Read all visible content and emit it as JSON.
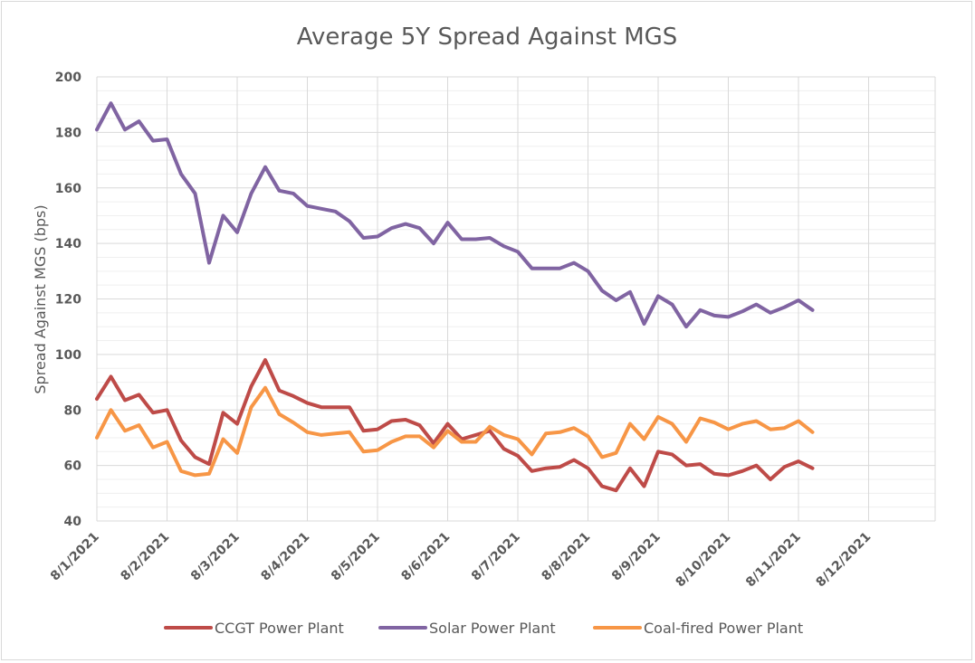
{
  "chart_data": {
    "type": "line",
    "title": "Average 5Y Spread Against MGS",
    "xlabel": "",
    "ylabel": "Spread Against MGS (bps)",
    "ylim": [
      40,
      200
    ],
    "yticks": [
      40,
      60,
      80,
      100,
      120,
      140,
      160,
      180,
      200
    ],
    "grid": true,
    "legend": "bottom",
    "x_tick_labels": [
      "8/1/2021",
      "8/2/2021",
      "8/3/2021",
      "8/4/2021",
      "8/5/2021",
      "8/6/2021",
      "8/7/2021",
      "8/8/2021",
      "8/9/2021",
      "8/10/2021",
      "8/11/2021",
      "8/12/2021"
    ],
    "x_tick_indices": [
      0,
      5,
      10,
      15,
      20,
      25,
      30,
      35,
      40,
      45,
      50,
      55
    ],
    "series": [
      {
        "name": "CCGT Power Plant",
        "color": "#be4b48",
        "values": [
          84,
          92,
          83.5,
          85.5,
          79,
          80,
          69,
          63,
          60.5,
          79,
          75,
          88.5,
          98,
          87,
          85,
          82.5,
          81,
          81,
          81,
          72.5,
          73,
          76,
          76.5,
          74.5,
          68,
          75,
          69.5,
          71,
          72.5,
          66,
          63.5,
          58,
          59,
          59.5,
          62,
          59,
          52.5,
          51,
          59,
          52.5,
          65,
          64,
          60,
          60.5,
          57,
          56.5,
          58,
          60,
          55,
          59.5,
          61.5,
          59
        ]
      },
      {
        "name": "Solar Power Plant",
        "color": "#8064a2",
        "values": [
          181,
          190.5,
          181,
          184,
          177,
          177.5,
          165,
          158,
          133,
          150,
          144,
          158,
          167.5,
          159,
          158,
          153.5,
          152.5,
          151.5,
          148,
          142,
          142.5,
          145.5,
          147,
          145.5,
          140,
          147.5,
          141.5,
          141.5,
          142,
          139,
          137,
          131,
          131,
          131,
          133,
          130,
          123,
          119.5,
          122.5,
          111,
          121,
          118,
          110,
          116,
          114,
          113.5,
          115.5,
          118,
          115,
          117,
          119.5,
          116
        ]
      },
      {
        "name": "Coal-fired Power Plant",
        "color": "#f79646",
        "values": [
          70,
          80,
          72.5,
          74.5,
          66.5,
          68.5,
          58,
          56.5,
          57,
          69.5,
          64.5,
          81,
          88,
          78.5,
          75.5,
          72,
          71,
          71.5,
          72,
          65,
          65.5,
          68.5,
          70.5,
          70.5,
          66.5,
          72.5,
          68.5,
          68.5,
          74,
          71,
          69.5,
          64,
          71.5,
          72,
          73.5,
          70.5,
          63,
          64.5,
          75,
          69.5,
          77.5,
          75,
          68.5,
          77,
          75.5,
          73,
          75,
          76,
          73,
          73.5,
          76,
          72
        ]
      }
    ]
  }
}
